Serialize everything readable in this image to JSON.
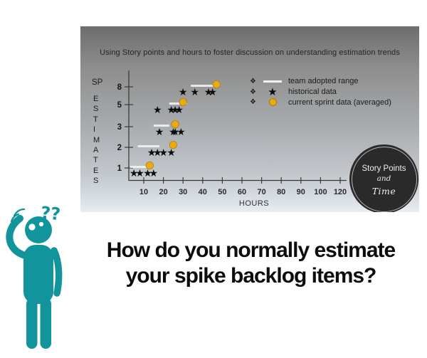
{
  "slide": {
    "question_line1": "How do you normally estimate",
    "question_line2": "your spike backlog items?"
  },
  "figure": {
    "question_marks": "??",
    "color": "#11949c"
  },
  "chart": {
    "title": "Using Story points and hours to foster discussion on understanding estimation trends",
    "y_axis_label_top": "SP",
    "y_axis_label": "ESTIMATES",
    "x_axis_label": "HOURS",
    "legend": [
      {
        "bullet": "❖",
        "marker": "range-line",
        "label": "team adopted range"
      },
      {
        "bullet": "❖",
        "marker": "star",
        "label": "historical data"
      },
      {
        "bullet": "❖",
        "marker": "circle",
        "label": "current sprint data (averaged)"
      }
    ],
    "badge": {
      "line1": "Story Points",
      "line2": "and",
      "line3": "Time",
      "bg": "#2a2a2a"
    },
    "colors": {
      "star": "#0b0b0b",
      "sprint_dot": "#ecaa10",
      "range_line": "#f1f1f1",
      "teal": "#11949c"
    }
  },
  "chart_data": {
    "type": "scatter",
    "title": "Using Story points and hours to foster discussion on understanding estimation trends",
    "xlabel": "HOURS",
    "ylabel": "SP ESTIMATES",
    "x_ticks": [
      10,
      20,
      30,
      40,
      50,
      60,
      70,
      80,
      90,
      100,
      120
    ],
    "y_categories": [
      1,
      2,
      3,
      5,
      8
    ],
    "grid": false,
    "legend_position": "top-right",
    "series": [
      {
        "name": "team adopted range",
        "type": "range",
        "color": "#f1f1f1",
        "ranges": [
          {
            "sp": 1,
            "from": 3,
            "to": 13
          },
          {
            "sp": 2,
            "from": 7,
            "to": 18
          },
          {
            "sp": 3,
            "from": 15,
            "to": 23
          },
          {
            "sp": 5,
            "from": 23,
            "to": 32
          },
          {
            "sp": 8,
            "from": 34,
            "to": 47
          }
        ]
      },
      {
        "name": "historical data",
        "type": "points",
        "marker": "star",
        "color": "#0b0b0b",
        "points": [
          {
            "sp": 1,
            "hours": [
              5,
              8,
              12,
              15
            ]
          },
          {
            "sp": 2,
            "hours": [
              14,
              17,
              20,
              24
            ]
          },
          {
            "sp": 3,
            "hours": [
              18,
              25,
              26,
              29
            ]
          },
          {
            "sp": 5,
            "hours": [
              17,
              24,
              26,
              28
            ]
          },
          {
            "sp": 8,
            "hours": [
              30,
              36,
              43,
              45
            ]
          }
        ]
      },
      {
        "name": "current sprint data (averaged)",
        "type": "points",
        "marker": "circle",
        "color": "#ecaa10",
        "points": [
          {
            "sp": 1,
            "hours": [
              13
            ]
          },
          {
            "sp": 2,
            "hours": [
              25
            ]
          },
          {
            "sp": 3,
            "hours": [
              26
            ]
          },
          {
            "sp": 5,
            "hours": [
              30
            ]
          },
          {
            "sp": 8,
            "hours": [
              47
            ]
          }
        ]
      }
    ]
  }
}
